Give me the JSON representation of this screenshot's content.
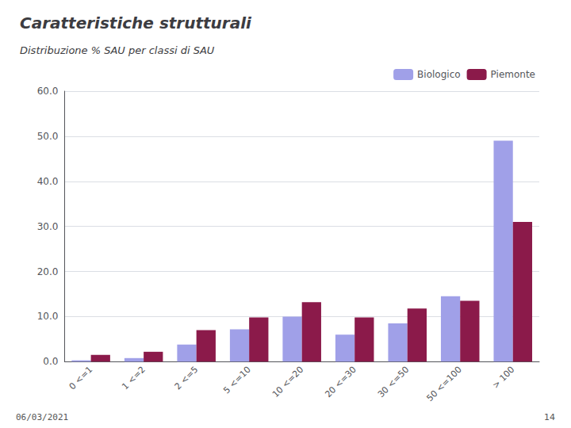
{
  "chart_data": {
    "type": "bar",
    "title": "Caratteristiche strutturali",
    "subtitle": "Distribuzione % SAU per classi di SAU",
    "annotations": [
      "06/03/2021",
      "14"
    ],
    "categories": [
      "0 <=1",
      "1 <=2",
      "2 <=5",
      "5 <=10",
      "10 <=20",
      "20 <=30",
      "30 <=50",
      "50 <=100",
      "> 100"
    ],
    "series": [
      {
        "name": "Biologico",
        "color": "#a0a0e8",
        "values": [
          0.3,
          0.8,
          3.8,
          7.2,
          10.0,
          6.0,
          8.5,
          14.5,
          49.0
        ]
      },
      {
        "name": "Piemonte",
        "color": "#8b1a4a",
        "values": [
          1.5,
          2.2,
          7.0,
          9.8,
          13.2,
          9.8,
          11.8,
          13.5,
          31.0
        ]
      }
    ],
    "ylim": [
      0,
      60
    ],
    "yticks": [
      {
        "value": 0,
        "label": "0.0"
      },
      {
        "value": 10,
        "label": "10.0"
      },
      {
        "value": 20,
        "label": "20.0"
      },
      {
        "value": 30,
        "label": "30.0"
      },
      {
        "value": 40,
        "label": "40.0"
      },
      {
        "value": 50,
        "label": "50.0"
      },
      {
        "value": 60,
        "label": "60.0"
      }
    ],
    "grid": true,
    "legend": "upper right"
  }
}
